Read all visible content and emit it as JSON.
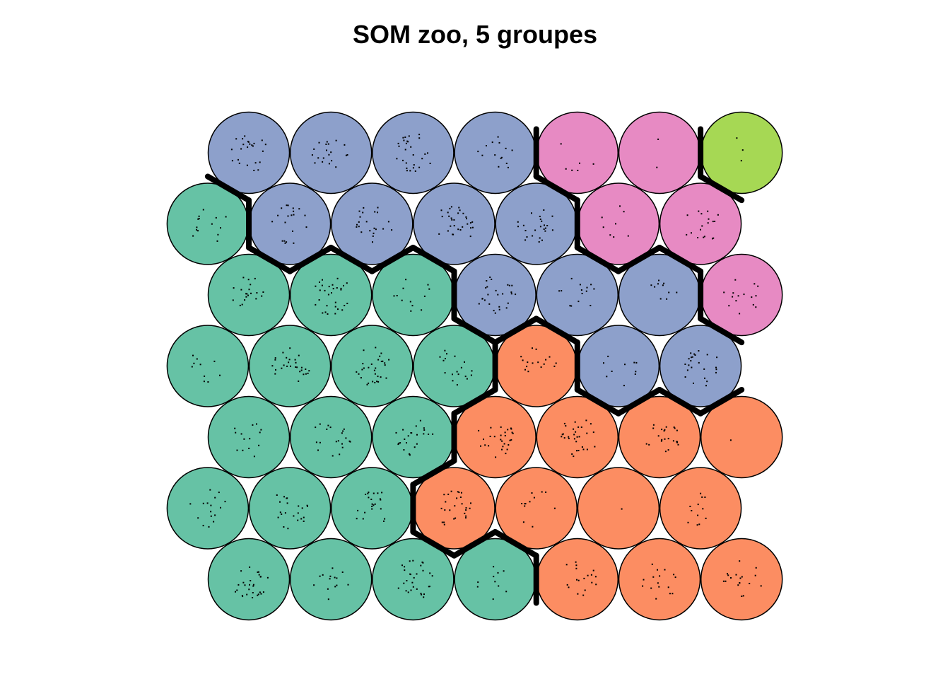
{
  "chart_data": {
    "type": "heatmap",
    "title": "SOM zoo, 5 groupes",
    "grid": {
      "xdim": 7,
      "ydim": 7,
      "topology": "hexagonal"
    },
    "groups": [
      {
        "id": 1,
        "color": "#66C2A5"
      },
      {
        "id": 2,
        "color": "#FC8D62"
      },
      {
        "id": 3,
        "color": "#8DA0CB"
      },
      {
        "id": 4,
        "color": "#E78AC3"
      },
      {
        "id": 5,
        "color": "#A6D854"
      }
    ],
    "clustering": [
      [
        3,
        3,
        3,
        3,
        4,
        4,
        5
      ],
      [
        1,
        3,
        3,
        3,
        3,
        4,
        4
      ],
      [
        1,
        1,
        1,
        3,
        3,
        3,
        4
      ],
      [
        1,
        1,
        1,
        1,
        2,
        3,
        3
      ],
      [
        1,
        1,
        1,
        2,
        2,
        2,
        2
      ],
      [
        1,
        1,
        1,
        2,
        2,
        2,
        2
      ],
      [
        1,
        1,
        1,
        1,
        2,
        2,
        2
      ]
    ],
    "counts": [
      [
        24,
        20,
        28,
        14,
        6,
        2,
        3
      ],
      [
        14,
        20,
        22,
        30,
        24,
        8,
        18
      ],
      [
        20,
        30,
        12,
        26,
        14,
        10,
        15
      ],
      [
        10,
        28,
        30,
        18,
        16,
        10,
        24
      ],
      [
        14,
        20,
        24,
        28,
        30,
        24,
        1
      ],
      [
        16,
        22,
        22,
        26,
        12,
        1,
        12
      ],
      [
        28,
        14,
        30,
        10,
        18,
        16,
        18
      ]
    ]
  }
}
